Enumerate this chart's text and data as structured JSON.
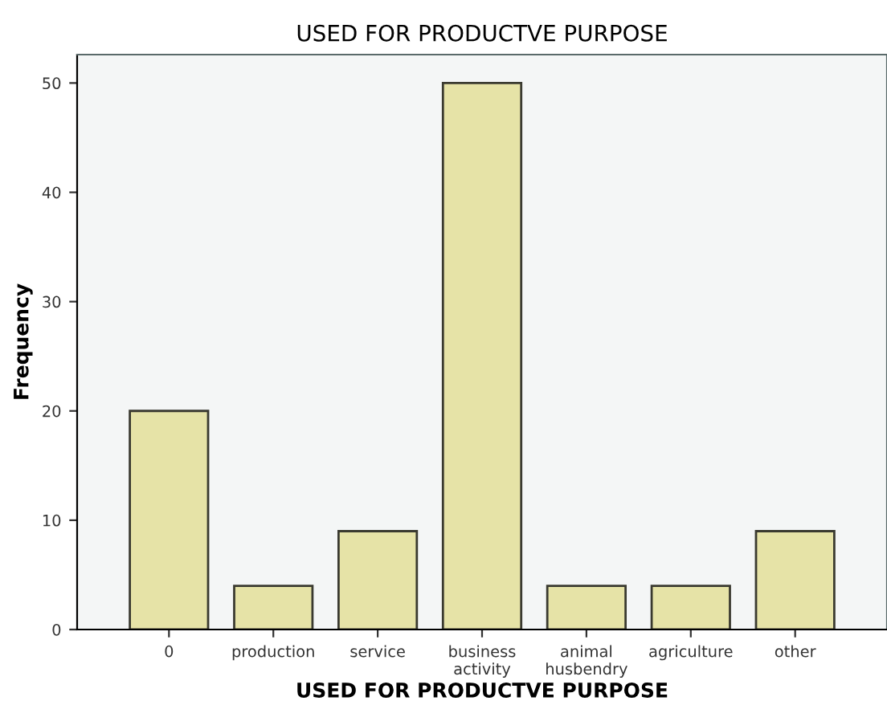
{
  "chart_data": {
    "type": "bar",
    "title": "USED FOR PRODUCTVE PURPOSE",
    "xlabel": "USED FOR PRODUCTVE PURPOSE",
    "ylabel": "Frequency",
    "categories": [
      "0",
      "production",
      "service",
      "business\nactivity",
      "animal\nhusbendry",
      "agriculture",
      "other"
    ],
    "values": [
      20,
      4,
      9,
      50,
      4,
      4,
      9
    ],
    "color": "#e6e3a7",
    "ylim": [
      0,
      52.6
    ],
    "yticks": [
      0,
      10,
      20,
      30,
      40,
      50
    ],
    "grid": false
  }
}
